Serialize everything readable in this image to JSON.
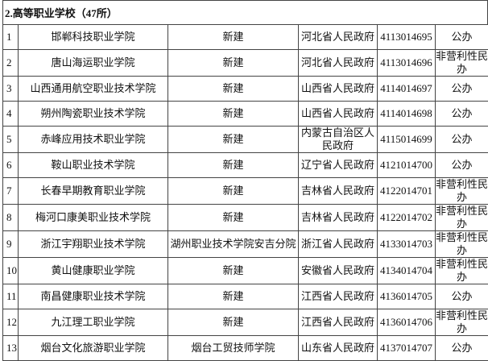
{
  "title": "2.高等职业学校（47所）",
  "rows": [
    {
      "no": "1",
      "name": "邯郸科技职业学院",
      "basis": "新建",
      "authority": "河北省人民政府",
      "code": "4113014695",
      "type": "公办"
    },
    {
      "no": "2",
      "name": "唐山海运职业学院",
      "basis": "新建",
      "authority": "河北省人民政府",
      "code": "4113014696",
      "type": "非营利性民办"
    },
    {
      "no": "3",
      "name": "山西通用航空职业技术学院",
      "basis": "新建",
      "authority": "山西省人民政府",
      "code": "4114014697",
      "type": "公办"
    },
    {
      "no": "4",
      "name": "朔州陶瓷职业技术学院",
      "basis": "新建",
      "authority": "山西省人民政府",
      "code": "4114014698",
      "type": "公办"
    },
    {
      "no": "5",
      "name": "赤峰应用技术职业学院",
      "basis": "新建",
      "authority": "内蒙古自治区人民政府",
      "code": "4115014699",
      "type": "公办"
    },
    {
      "no": "6",
      "name": "鞍山职业技术学院",
      "basis": "新建",
      "authority": "辽宁省人民政府",
      "code": "4121014700",
      "type": "公办"
    },
    {
      "no": "7",
      "name": "长春早期教育职业学院",
      "basis": "新建",
      "authority": "吉林省人民政府",
      "code": "4122014701",
      "type": "非营利性民办"
    },
    {
      "no": "8",
      "name": "梅河口康美职业技术学院",
      "basis": "新建",
      "authority": "吉林省人民政府",
      "code": "4122014702",
      "type": "非营利性民办"
    },
    {
      "no": "9",
      "name": "浙江宇翔职业技术学院",
      "basis": "湖州职业技术学院安吉分院",
      "authority": "浙江省人民政府",
      "code": "4133014703",
      "type": "非营利性民办"
    },
    {
      "no": "10",
      "name": "黄山健康职业学院",
      "basis": "新建",
      "authority": "安徽省人民政府",
      "code": "4134014704",
      "type": "非营利性民办"
    },
    {
      "no": "11",
      "name": "南昌健康职业技术学院",
      "basis": "新建",
      "authority": "江西省人民政府",
      "code": "4136014705",
      "type": "公办"
    },
    {
      "no": "12",
      "name": "九江理工职业学院",
      "basis": "新建",
      "authority": "江西省人民政府",
      "code": "4136014706",
      "type": "非营利性民办"
    },
    {
      "no": "13",
      "name": "烟台文化旅游职业学院",
      "basis": "烟台工贸技师学院",
      "authority": "山东省人民政府",
      "code": "4137014707",
      "type": "公办"
    }
  ]
}
